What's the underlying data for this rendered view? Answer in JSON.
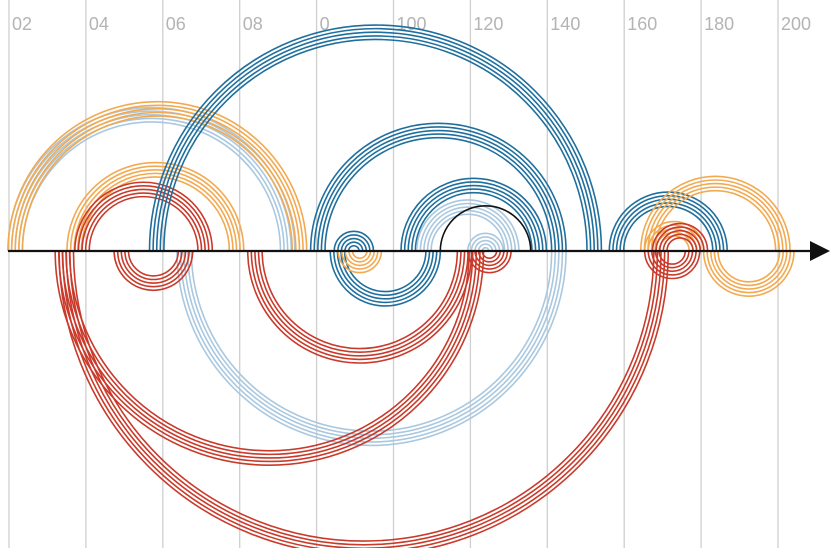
{
  "colors": {
    "background": "#ffffff",
    "grid": "#cfcfcf",
    "tick_text": "#b4b4b4",
    "axis": "#111111",
    "dark_blue": "#1f6f9e",
    "light_blue": "#a9c8df",
    "orange": "#f3a94f",
    "red": "#c93a2a",
    "black": "#111111"
  },
  "axis": {
    "tick_labels": [
      "02",
      "04",
      "06",
      "08",
      "0",
      "100",
      "120",
      "140",
      "160",
      "180",
      "200"
    ],
    "arrow": "right-arrow"
  },
  "chart_data": {
    "type": "arc-diagram",
    "x_ticks": [
      "02",
      "04",
      "06",
      "08",
      "0",
      "100",
      "120",
      "140",
      "160",
      "180",
      "200"
    ],
    "arcs": [
      {
        "side": "above",
        "color": "light_blue",
        "from": 0,
        "to": 73
      },
      {
        "side": "above",
        "color": "orange",
        "from": 0,
        "to": 76
      },
      {
        "side": "above",
        "color": "orange",
        "from": 15,
        "to": 60
      },
      {
        "side": "above",
        "color": "red",
        "from": 17,
        "to": 52
      },
      {
        "side": "above",
        "color": "dark_blue",
        "from": 36,
        "to": 151
      },
      {
        "side": "above",
        "color": "dark_blue",
        "from": 77,
        "to": 142
      },
      {
        "side": "above",
        "color": "dark_blue",
        "from": 83,
        "to": 93
      },
      {
        "side": "above",
        "color": "dark_blue",
        "from": 100,
        "to": 137
      },
      {
        "side": "above",
        "color": "light_blue",
        "from": 104,
        "to": 130
      },
      {
        "side": "above",
        "color": "black",
        "from": 110,
        "to": 133
      },
      {
        "side": "above",
        "color": "light_blue",
        "from": 117,
        "to": 126
      },
      {
        "side": "above",
        "color": "dark_blue",
        "from": 153,
        "to": 183
      },
      {
        "side": "above",
        "color": "orange",
        "from": 161,
        "to": 199
      },
      {
        "side": "above",
        "color": "orange",
        "from": 162,
        "to": 177
      },
      {
        "side": "above",
        "color": "red",
        "from": 164,
        "to": 178
      },
      {
        "side": "below",
        "color": "light_blue",
        "from": 43,
        "to": 142
      },
      {
        "side": "below",
        "color": "red",
        "from": 27,
        "to": 47
      },
      {
        "side": "below",
        "color": "red",
        "from": 12,
        "to": 121
      },
      {
        "side": "below",
        "color": "red",
        "from": 61,
        "to": 118
      },
      {
        "side": "below",
        "color": "dark_blue",
        "from": 82,
        "to": 110
      },
      {
        "side": "below",
        "color": "orange",
        "from": 84,
        "to": 95
      },
      {
        "side": "below",
        "color": "red",
        "from": 117,
        "to": 128
      },
      {
        "side": "below",
        "color": "red",
        "from": 13,
        "to": 168
      },
      {
        "side": "below",
        "color": "red",
        "from": 162,
        "to": 176
      },
      {
        "side": "below",
        "color": "orange",
        "from": 177,
        "to": 200
      }
    ]
  }
}
